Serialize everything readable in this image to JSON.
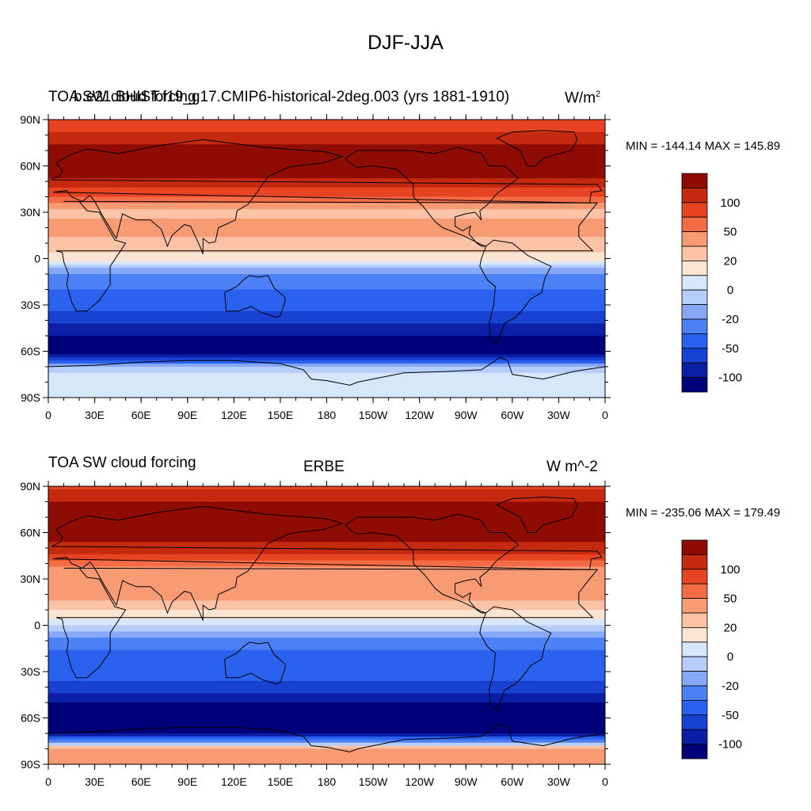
{
  "figure_title": "DJF-JJA",
  "colors": {
    "levels": [
      "#00007a",
      "#0a1fa6",
      "#1a42d2",
      "#2a62ef",
      "#4d80f5",
      "#87a8f7",
      "#b5cdfa",
      "#d6e6fb",
      "#fbe5d2",
      "#fbc3a6",
      "#f79b74",
      "#f46c46",
      "#e74424",
      "#c52a10",
      "#8e0c03"
    ],
    "land": "#000000",
    "missing": "#ffffff"
  },
  "colorbar_ticks": [
    "100",
    "50",
    "20",
    "0",
    "-20",
    "-50",
    "-100"
  ],
  "x_ticks": [
    "0",
    "30E",
    "60E",
    "90E",
    "120E",
    "150E",
    "180",
    "150W",
    "120W",
    "90W",
    "60W",
    "30W",
    "0"
  ],
  "y_ticks": [
    "90N",
    "60N",
    "30N",
    "0",
    "30S",
    "60S",
    "90S"
  ],
  "panels": [
    {
      "left_title": "TOA SW cloud forcing",
      "center_title": "b.e21.BHIST.f19_g17.CMIP6-historical-2deg.003 (yrs 1881-1910)",
      "right_title": "W/m",
      "right_title_sup": "2",
      "min_max": "MIN = -144.14 MAX = 145.89"
    },
    {
      "left_title": "TOA SW cloud forcing",
      "center_title": "ERBE",
      "right_title": "W m^-2",
      "right_title_sup": "",
      "min_max": "MIN = -235.06 MAX = 179.49"
    }
  ],
  "chart_data": [
    {
      "type": "heatmap",
      "title": "TOA SW cloud forcing — b.e21.BHIST.f19_g17.CMIP6-historical-2deg.003 (yrs 1881-1910)",
      "units": "W/m2",
      "xlim": [
        0,
        360
      ],
      "ylim": [
        -90,
        90
      ],
      "min": -144.14,
      "max": 145.89,
      "zonal_profile": {
        "lat": [
          90,
          80,
          70,
          60,
          50,
          40,
          30,
          20,
          10,
          0,
          -10,
          -20,
          -30,
          -40,
          -50,
          -60,
          -70,
          -80,
          -90
        ],
        "value": [
          50,
          80,
          110,
          120,
          95,
          45,
          15,
          25,
          15,
          5,
          -35,
          -50,
          -65,
          -95,
          -120,
          -140,
          -15,
          -5,
          -5
        ]
      }
    },
    {
      "type": "heatmap",
      "title": "TOA SW cloud forcing — ERBE",
      "units": "W m^-2",
      "xlim": [
        0,
        360
      ],
      "ylim": [
        -90,
        90
      ],
      "min": -235.06,
      "max": 179.49,
      "zonal_profile": {
        "lat": [
          90,
          80,
          70,
          60,
          50,
          40,
          30,
          20,
          10,
          0,
          -10,
          -20,
          -30,
          -40,
          -50,
          -60,
          -70,
          -80,
          -90
        ],
        "value": [
          70,
          100,
          120,
          110,
          90,
          40,
          20,
          25,
          10,
          -10,
          -40,
          -55,
          -60,
          -90,
          -120,
          -160,
          -120,
          30,
          20
        ]
      }
    }
  ]
}
